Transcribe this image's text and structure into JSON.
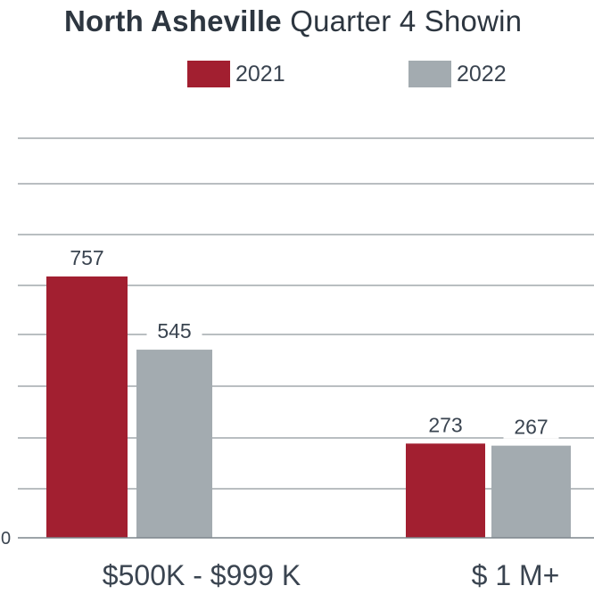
{
  "chart_data": {
    "type": "bar",
    "title_bold": "North Asheville",
    "title_rest": " Quarter 4 Showin",
    "categories": [
      "$500K - $999 K",
      "$ 1 M+"
    ],
    "series": [
      {
        "name": "2021",
        "values": [
          757,
          273
        ],
        "color": "#a21f30"
      },
      {
        "name": "2022",
        "values": [
          545,
          267
        ],
        "color": "#a3abb0"
      }
    ],
    "yticks": [
      "0"
    ],
    "ylim": [
      0,
      1010
    ],
    "grid": true,
    "legend_position": "top-center"
  }
}
